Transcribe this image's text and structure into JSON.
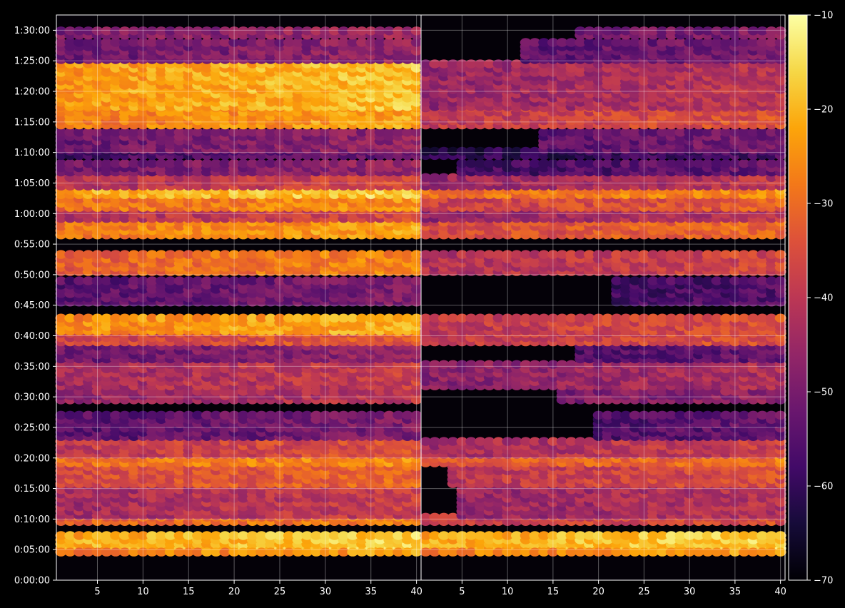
{
  "chart_data": {
    "type": "heatmap",
    "title": "",
    "xlabel": "",
    "ylabel": "",
    "panels": [
      {
        "name": "",
        "x_ticks": [
          "5",
          "10",
          "15",
          "20",
          "25",
          "30",
          "35",
          "40"
        ],
        "xlim": [
          1,
          40
        ]
      },
      {
        "name": "",
        "x_ticks": [
          "5",
          "10",
          "15",
          "20",
          "25",
          "30",
          "35",
          "40"
        ],
        "xlim": [
          1,
          40
        ]
      }
    ],
    "y_ticks": [
      "0:00:00",
      "0:05:00",
      "0:10:00",
      "0:15:00",
      "0:20:00",
      "0:25:00",
      "0:30:00",
      "0:35:00",
      "0:40:00",
      "0:45:00",
      "0:50:00",
      "0:55:00",
      "1:00:00",
      "1:05:00",
      "1:10:00",
      "1:15:00",
      "1:20:00",
      "1:25:00",
      "1:30:00"
    ],
    "ylim_seconds": [
      0,
      5550
    ],
    "colorbar": {
      "colormap": "inferno",
      "range": [
        -70,
        -10
      ],
      "ticks": [
        "−70",
        "−60",
        "−50",
        "−40",
        "−30",
        "−20",
        "−10"
      ]
    },
    "grid": true,
    "bands": [
      {
        "t0": 5.2,
        "t1": 7.8,
        "left": -22,
        "right": -22,
        "start": 1
      },
      {
        "t0": 4.6,
        "t1": 5.0,
        "left": -28,
        "right": -28,
        "start": 1
      },
      {
        "t0": 9.6,
        "t1": 10.3,
        "left": -32,
        "right": -40,
        "start": 1
      },
      {
        "t0": 10.6,
        "t1": 15.5,
        "left": -44,
        "right": -46,
        "start": 5
      },
      {
        "t0": 15.8,
        "t1": 18.8,
        "left": -36,
        "right": -40,
        "start": 4
      },
      {
        "t0": 19.2,
        "t1": 20.2,
        "left": -30,
        "right": -34,
        "start": 1
      },
      {
        "t0": 20.6,
        "t1": 23.0,
        "left": -40,
        "right": -44,
        "start": 1
      },
      {
        "t0": 23.5,
        "t1": 27.5,
        "left": -55,
        "right": -56,
        "start": 20
      },
      {
        "t0": 29.5,
        "t1": 31.0,
        "left": -46,
        "right": -50,
        "start": 16
      },
      {
        "t0": 31.8,
        "t1": 35.5,
        "left": -44,
        "right": -48,
        "start": 1
      },
      {
        "t0": 36.2,
        "t1": 38.8,
        "left": -52,
        "right": -56,
        "start": 18
      },
      {
        "t0": 39.0,
        "t1": 40.5,
        "left": -38,
        "right": -40,
        "start": 1
      },
      {
        "t0": 40.8,
        "t1": 43.2,
        "left": -26,
        "right": -40,
        "start": 1
      },
      {
        "t0": 45.5,
        "t1": 49.5,
        "left": -55,
        "right": -58,
        "start": 22
      },
      {
        "t0": 50.5,
        "t1": 53.5,
        "left": -32,
        "right": -42,
        "start": 1
      },
      {
        "t0": 56.5,
        "t1": 58.8,
        "left": -28,
        "right": -36,
        "start": 1
      },
      {
        "t0": 59.2,
        "t1": 60.8,
        "left": -42,
        "right": -46,
        "start": 1
      },
      {
        "t0": 61.0,
        "t1": 62.8,
        "left": -30,
        "right": -38,
        "start": 1
      },
      {
        "t0": 63.1,
        "t1": 63.9,
        "left": -22,
        "right": -30,
        "start": 1
      },
      {
        "t0": 64.5,
        "t1": 66.5,
        "left": -42,
        "right": -46,
        "start": 1
      },
      {
        "t0": 66.8,
        "t1": 68.2,
        "left": -52,
        "right": -58,
        "start": 5
      },
      {
        "t0": 69.5,
        "t1": 70.5,
        "left": -58,
        "right": -62,
        "start": 1
      },
      {
        "t0": 70.5,
        "t1": 73.5,
        "left": -52,
        "right": -54,
        "start": 14
      },
      {
        "t0": 74.5,
        "t1": 77.5,
        "left": -28,
        "right": -40,
        "start": 1
      },
      {
        "t0": 77.5,
        "t1": 84.8,
        "left": -24,
        "right": -46,
        "start": 1
      },
      {
        "t0": 85.2,
        "t1": 88.5,
        "left": -52,
        "right": -54,
        "start": 12
      },
      {
        "t0": 89.2,
        "t1": 90.2,
        "left": -50,
        "right": -52,
        "start": 18
      }
    ]
  }
}
